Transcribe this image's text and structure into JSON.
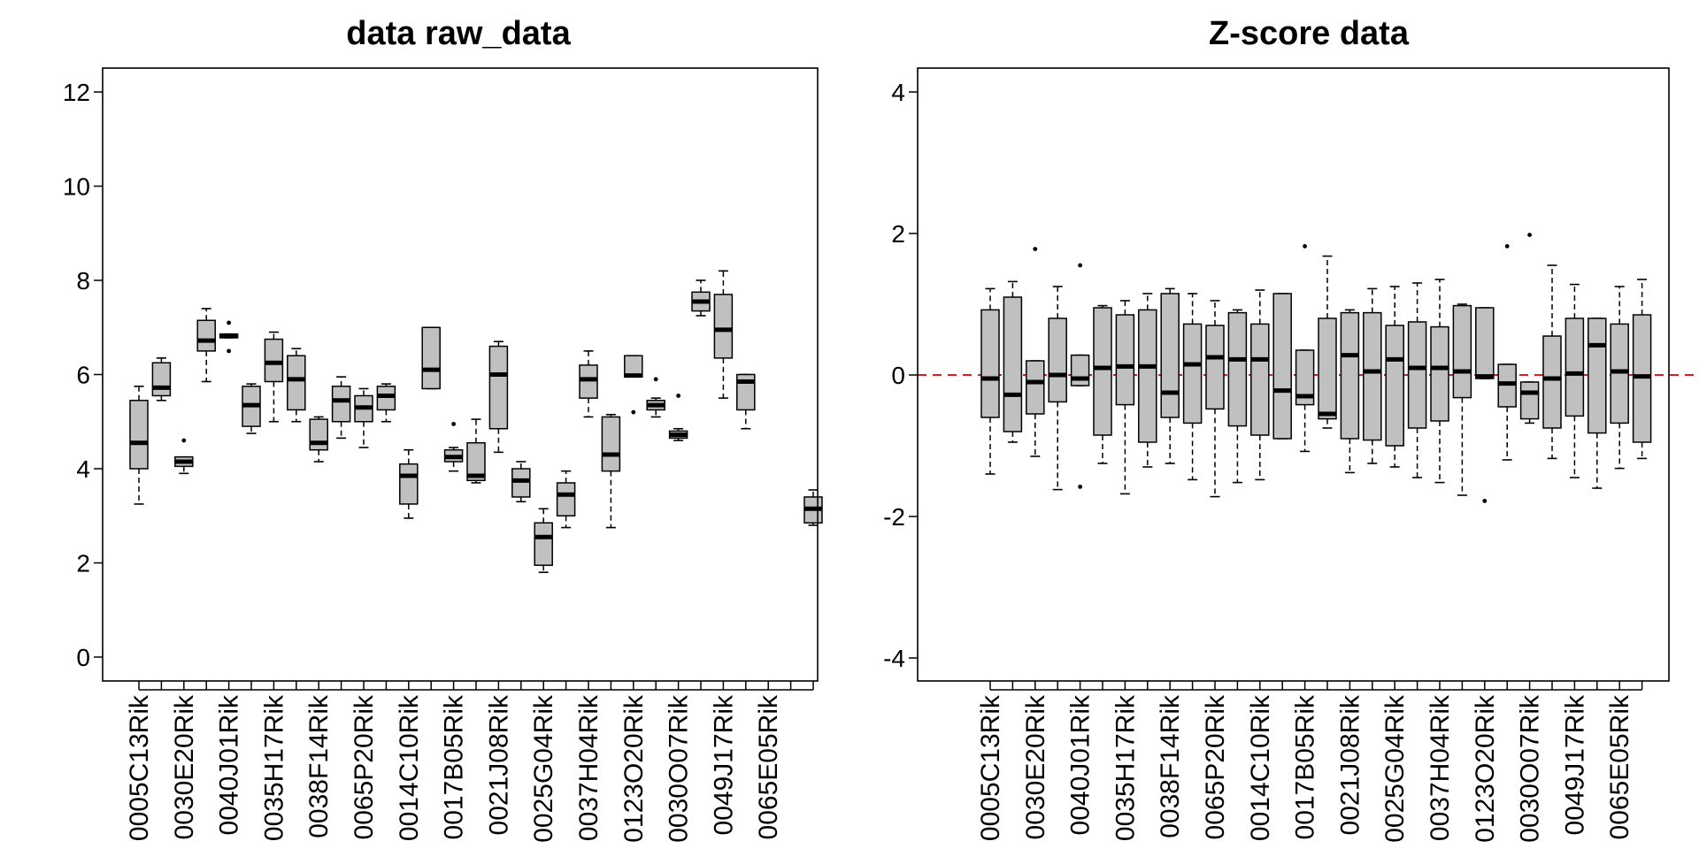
{
  "chart_data": [
    {
      "type": "box",
      "title": "data raw_data",
      "xlabel": "",
      "ylabel": "",
      "ylim": [
        0,
        12
      ],
      "yticks": [
        0,
        2,
        4,
        6,
        8,
        10,
        12
      ],
      "box_fill": "#c0c0c0",
      "tick_labels": [
        "0005C13Rik",
        "0030E20Rik",
        "0040J01Rik",
        "0035H17Rik",
        "0038F14Rik",
        "0065P20Rik",
        "0014C10Rik",
        "0017B05Rik",
        "0021J08Rik",
        "0025G04Rik",
        "0037H04Rik",
        "0123O20Rik",
        "0030O07Rik",
        "0049J17Rik",
        "0065E05Rik"
      ],
      "boxes": [
        {
          "min": 3.25,
          "q1": 4.0,
          "median": 4.55,
          "q3": 5.45,
          "max": 5.75,
          "outliers": []
        },
        {
          "min": 5.45,
          "q1": 5.55,
          "median": 5.72,
          "q3": 6.25,
          "max": 6.35,
          "outliers": []
        },
        {
          "min": 3.9,
          "q1": 4.05,
          "median": 4.15,
          "q3": 4.25,
          "max": 4.25,
          "outliers": [
            4.6
          ]
        },
        {
          "min": 5.85,
          "q1": 6.5,
          "median": 6.72,
          "q3": 7.15,
          "max": 7.4,
          "outliers": []
        },
        {
          "min": 6.78,
          "q1": 6.78,
          "median": 6.82,
          "q3": 6.86,
          "max": 6.86,
          "outliers": [
            7.1,
            6.5
          ]
        },
        {
          "min": 4.75,
          "q1": 4.9,
          "median": 5.35,
          "q3": 5.75,
          "max": 5.8,
          "outliers": []
        },
        {
          "min": 5.0,
          "q1": 5.85,
          "median": 6.25,
          "q3": 6.75,
          "max": 6.9,
          "outliers": []
        },
        {
          "min": 5.0,
          "q1": 5.25,
          "median": 5.9,
          "q3": 6.4,
          "max": 6.55,
          "outliers": []
        },
        {
          "min": 4.15,
          "q1": 4.4,
          "median": 4.55,
          "q3": 5.05,
          "max": 5.1,
          "outliers": []
        },
        {
          "min": 4.65,
          "q1": 5.0,
          "median": 5.45,
          "q3": 5.75,
          "max": 5.95,
          "outliers": []
        },
        {
          "min": 4.45,
          "q1": 5.0,
          "median": 5.3,
          "q3": 5.55,
          "max": 5.7,
          "outliers": []
        },
        {
          "min": 5.0,
          "q1": 5.25,
          "median": 5.55,
          "q3": 5.75,
          "max": 5.8,
          "outliers": []
        },
        {
          "min": 2.95,
          "q1": 3.25,
          "median": 3.85,
          "q3": 4.1,
          "max": 4.4,
          "outliers": []
        },
        {
          "min": 5.7,
          "q1": 5.7,
          "median": 6.1,
          "q3": 7.0,
          "max": 7.0,
          "outliers": []
        },
        {
          "min": 3.95,
          "q1": 4.15,
          "median": 4.25,
          "q3": 4.4,
          "max": 4.45,
          "outliers": [
            4.95
          ]
        },
        {
          "min": 3.7,
          "q1": 3.75,
          "median": 3.85,
          "q3": 4.55,
          "max": 5.05,
          "outliers": []
        },
        {
          "min": 4.35,
          "q1": 4.85,
          "median": 6.0,
          "q3": 6.6,
          "max": 6.7,
          "outliers": []
        },
        {
          "min": 3.3,
          "q1": 3.4,
          "median": 3.75,
          "q3": 4.0,
          "max": 4.15,
          "outliers": []
        },
        {
          "min": 1.8,
          "q1": 1.95,
          "median": 2.55,
          "q3": 2.85,
          "max": 3.15,
          "outliers": []
        },
        {
          "min": 2.75,
          "q1": 3.0,
          "median": 3.45,
          "q3": 3.7,
          "max": 3.95,
          "outliers": []
        },
        {
          "min": 5.1,
          "q1": 5.5,
          "median": 5.9,
          "q3": 6.2,
          "max": 6.5,
          "outliers": []
        },
        {
          "min": 2.75,
          "q1": 3.95,
          "median": 4.3,
          "q3": 5.1,
          "max": 5.15,
          "outliers": []
        },
        {
          "min": 5.95,
          "q1": 5.95,
          "median": 5.98,
          "q3": 6.4,
          "max": 6.4,
          "outliers": [
            5.2
          ]
        },
        {
          "min": 5.1,
          "q1": 5.25,
          "median": 5.35,
          "q3": 5.45,
          "max": 5.5,
          "outliers": [
            5.9
          ]
        },
        {
          "min": 4.6,
          "q1": 4.65,
          "median": 4.72,
          "q3": 4.8,
          "max": 4.85,
          "outliers": [
            5.55
          ]
        },
        {
          "min": 7.25,
          "q1": 7.35,
          "median": 7.55,
          "q3": 7.75,
          "max": 8.0,
          "outliers": []
        },
        {
          "min": 5.5,
          "q1": 6.35,
          "median": 6.95,
          "q3": 7.7,
          "max": 8.2,
          "outliers": []
        },
        {
          "min": 4.85,
          "q1": 5.25,
          "median": 5.85,
          "q3": 6.0,
          "max": 6.0,
          "outliers": []
        },
        null,
        null,
        {
          "min": 2.8,
          "q1": 2.85,
          "median": 3.15,
          "q3": 3.4,
          "max": 3.55,
          "outliers": []
        }
      ]
    },
    {
      "type": "box",
      "title": "Z-score data",
      "xlabel": "",
      "ylabel": "",
      "ylim": [
        -4,
        4
      ],
      "yticks": [
        -4,
        -2,
        0,
        2,
        4
      ],
      "reference_line": {
        "y": 0,
        "color": "#e31a1c",
        "style": "dashed"
      },
      "box_fill": "#c0c0c0",
      "tick_labels": [
        "0005C13Rik",
        "0030E20Rik",
        "0040J01Rik",
        "0035H17Rik",
        "0038F14Rik",
        "0065P20Rik",
        "0014C10Rik",
        "0017B05Rik",
        "0021J08Rik",
        "0025G04Rik",
        "0037H04Rik",
        "0123O20Rik",
        "0030O07Rik",
        "0049J17Rik",
        "0065E05Rik"
      ],
      "boxes": [
        {
          "min": -1.4,
          "q1": -0.6,
          "median": -0.05,
          "q3": 0.92,
          "max": 1.22,
          "outliers": []
        },
        {
          "min": -0.95,
          "q1": -0.8,
          "median": -0.28,
          "q3": 1.1,
          "max": 1.32,
          "outliers": []
        },
        {
          "min": -1.15,
          "q1": -0.55,
          "median": -0.1,
          "q3": 0.2,
          "max": 0.2,
          "outliers": [
            1.78
          ]
        },
        {
          "min": -1.62,
          "q1": -0.38,
          "median": 0.0,
          "q3": 0.8,
          "max": 1.25,
          "outliers": []
        },
        {
          "min": -0.15,
          "q1": -0.15,
          "median": -0.05,
          "q3": 0.28,
          "max": 0.28,
          "outliers": [
            1.55,
            -1.58
          ]
        },
        {
          "min": -1.25,
          "q1": -0.85,
          "median": 0.1,
          "q3": 0.95,
          "max": 0.98,
          "outliers": []
        },
        {
          "min": -1.68,
          "q1": -0.42,
          "median": 0.12,
          "q3": 0.85,
          "max": 1.05,
          "outliers": []
        },
        {
          "min": -1.3,
          "q1": -0.95,
          "median": 0.12,
          "q3": 0.92,
          "max": 1.15,
          "outliers": []
        },
        {
          "min": -1.25,
          "q1": -0.6,
          "median": -0.25,
          "q3": 1.15,
          "max": 1.22,
          "outliers": []
        },
        {
          "min": -1.48,
          "q1": -0.68,
          "median": 0.15,
          "q3": 0.72,
          "max": 1.15,
          "outliers": []
        },
        {
          "min": -1.72,
          "q1": -0.48,
          "median": 0.25,
          "q3": 0.7,
          "max": 1.05,
          "outliers": []
        },
        {
          "min": -1.52,
          "q1": -0.72,
          "median": 0.22,
          "q3": 0.88,
          "max": 0.92,
          "outliers": []
        },
        {
          "min": -1.48,
          "q1": -0.85,
          "median": 0.22,
          "q3": 0.72,
          "max": 1.2,
          "outliers": []
        },
        {
          "min": -0.9,
          "q1": -0.9,
          "median": -0.22,
          "q3": 1.15,
          "max": 1.15,
          "outliers": []
        },
        {
          "min": -1.08,
          "q1": -0.42,
          "median": -0.3,
          "q3": 0.35,
          "max": 0.35,
          "outliers": [
            1.82
          ]
        },
        {
          "min": -0.75,
          "q1": -0.62,
          "median": -0.55,
          "q3": 0.8,
          "max": 1.68,
          "outliers": []
        },
        {
          "min": -1.38,
          "q1": -0.9,
          "median": 0.28,
          "q3": 0.88,
          "max": 0.92,
          "outliers": []
        },
        {
          "min": -1.25,
          "q1": -0.92,
          "median": 0.05,
          "q3": 0.88,
          "max": 1.22,
          "outliers": []
        },
        {
          "min": -1.3,
          "q1": -1.0,
          "median": 0.22,
          "q3": 0.7,
          "max": 1.25,
          "outliers": []
        },
        {
          "min": -1.45,
          "q1": -0.75,
          "median": 0.1,
          "q3": 0.75,
          "max": 1.3,
          "outliers": []
        },
        {
          "min": -1.52,
          "q1": -0.65,
          "median": 0.1,
          "q3": 0.68,
          "max": 1.35,
          "outliers": []
        },
        {
          "min": -1.7,
          "q1": -0.32,
          "median": 0.05,
          "q3": 0.98,
          "max": 1.0,
          "outliers": []
        },
        {
          "min": -0.05,
          "q1": -0.05,
          "median": -0.02,
          "q3": 0.95,
          "max": 0.95,
          "outliers": [
            -1.78
          ]
        },
        {
          "min": -1.2,
          "q1": -0.45,
          "median": -0.12,
          "q3": 0.15,
          "max": 0.15,
          "outliers": [
            1.82
          ]
        },
        {
          "min": -0.68,
          "q1": -0.62,
          "median": -0.25,
          "q3": -0.1,
          "max": -0.1,
          "outliers": [
            1.98
          ]
        },
        {
          "min": -1.18,
          "q1": -0.75,
          "median": -0.05,
          "q3": 0.55,
          "max": 1.55,
          "outliers": []
        },
        {
          "min": -1.45,
          "q1": -0.58,
          "median": 0.02,
          "q3": 0.8,
          "max": 1.28,
          "outliers": []
        },
        {
          "min": -1.6,
          "q1": -0.82,
          "median": 0.42,
          "q3": 0.8,
          "max": 0.8,
          "outliers": []
        },
        {
          "min": -1.32,
          "q1": -0.68,
          "median": 0.05,
          "q3": 0.72,
          "max": 1.25,
          "outliers": []
        },
        {
          "min": -1.18,
          "q1": -0.95,
          "median": -0.02,
          "q3": 0.85,
          "max": 1.35,
          "outliers": []
        }
      ]
    }
  ]
}
